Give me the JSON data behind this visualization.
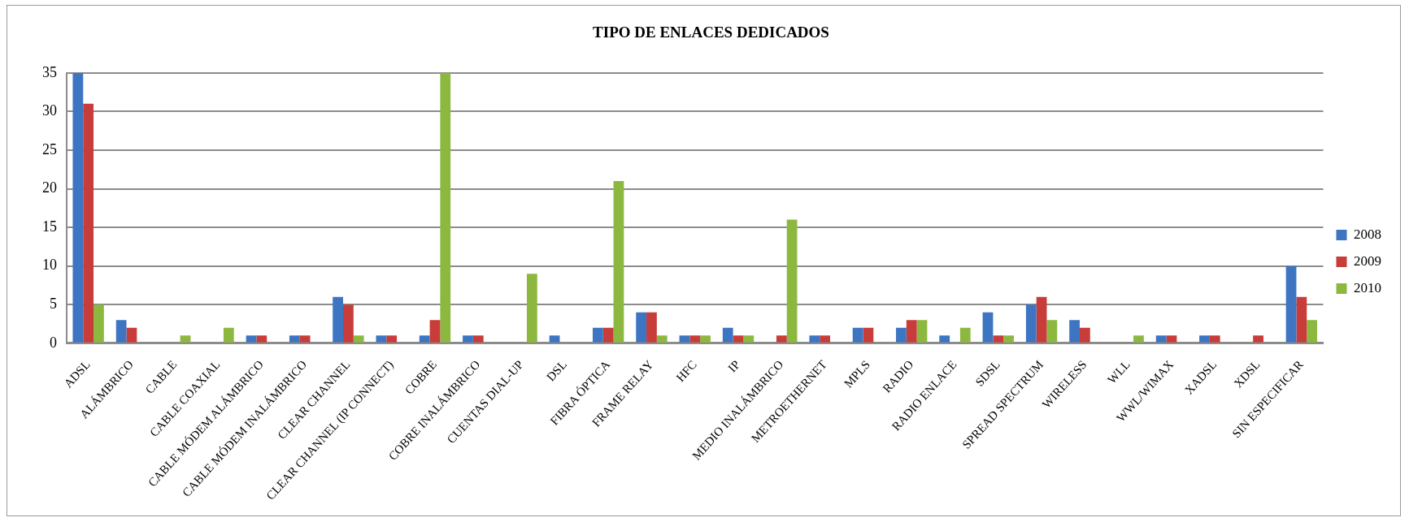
{
  "chart_data": {
    "type": "bar",
    "title": "TIPO DE ENLACES DEDICADOS",
    "categories": [
      "ADSL",
      "ALÁMBRICO",
      "CABLE",
      "CABLE COAXIAL",
      "CABLE MÓDEM ALÁMBRICO",
      "CABLE MÓDEM INALÁMBRICO",
      "CLEAR CHANNEL",
      "CLEAR CHANNEL (IP CONNECT)",
      "COBRE",
      "COBRE INALÁMBRICO",
      "CUENTAS DIAL-UP",
      "DSL",
      "FIBRA ÓPTICA",
      "FRAME RELAY",
      "HFC",
      "IP",
      "MEDIO INALÁMBRICO",
      "METROETHERNET",
      "MPLS",
      "RADIO",
      "RADIO ENLACE",
      "SDSL",
      "SPREAD SPECTRUM",
      "WIRELESS",
      "WLL",
      "WWL/WIMAX",
      "XADSL",
      "XDSL",
      "SIN ESPECIFICAR"
    ],
    "series": [
      {
        "name": "2008",
        "color": "#3d75c2",
        "values": [
          35,
          3,
          0,
          0,
          1,
          1,
          6,
          1,
          1,
          1,
          0,
          1,
          2,
          4,
          1,
          2,
          0,
          1,
          2,
          2,
          1,
          4,
          5,
          3,
          0,
          1,
          1,
          0,
          10
        ]
      },
      {
        "name": "2009",
        "color": "#c83c39",
        "values": [
          31,
          2,
          0,
          0,
          1,
          1,
          5,
          1,
          3,
          1,
          0,
          0,
          2,
          4,
          1,
          1,
          1,
          1,
          2,
          3,
          0,
          1,
          6,
          2,
          0,
          1,
          1,
          1,
          6
        ]
      },
      {
        "name": "2010",
        "color": "#8db840",
        "values": [
          5,
          0,
          1,
          2,
          0,
          0,
          1,
          0,
          35,
          0,
          9,
          0,
          21,
          1,
          1,
          1,
          16,
          0,
          0,
          3,
          2,
          1,
          3,
          0,
          1,
          0,
          0,
          0,
          3
        ]
      }
    ],
    "ylim": [
      0,
      35
    ],
    "yticks": [
      0,
      5,
      10,
      15,
      20,
      25,
      30,
      35
    ],
    "grid": "y",
    "legend": "right"
  }
}
